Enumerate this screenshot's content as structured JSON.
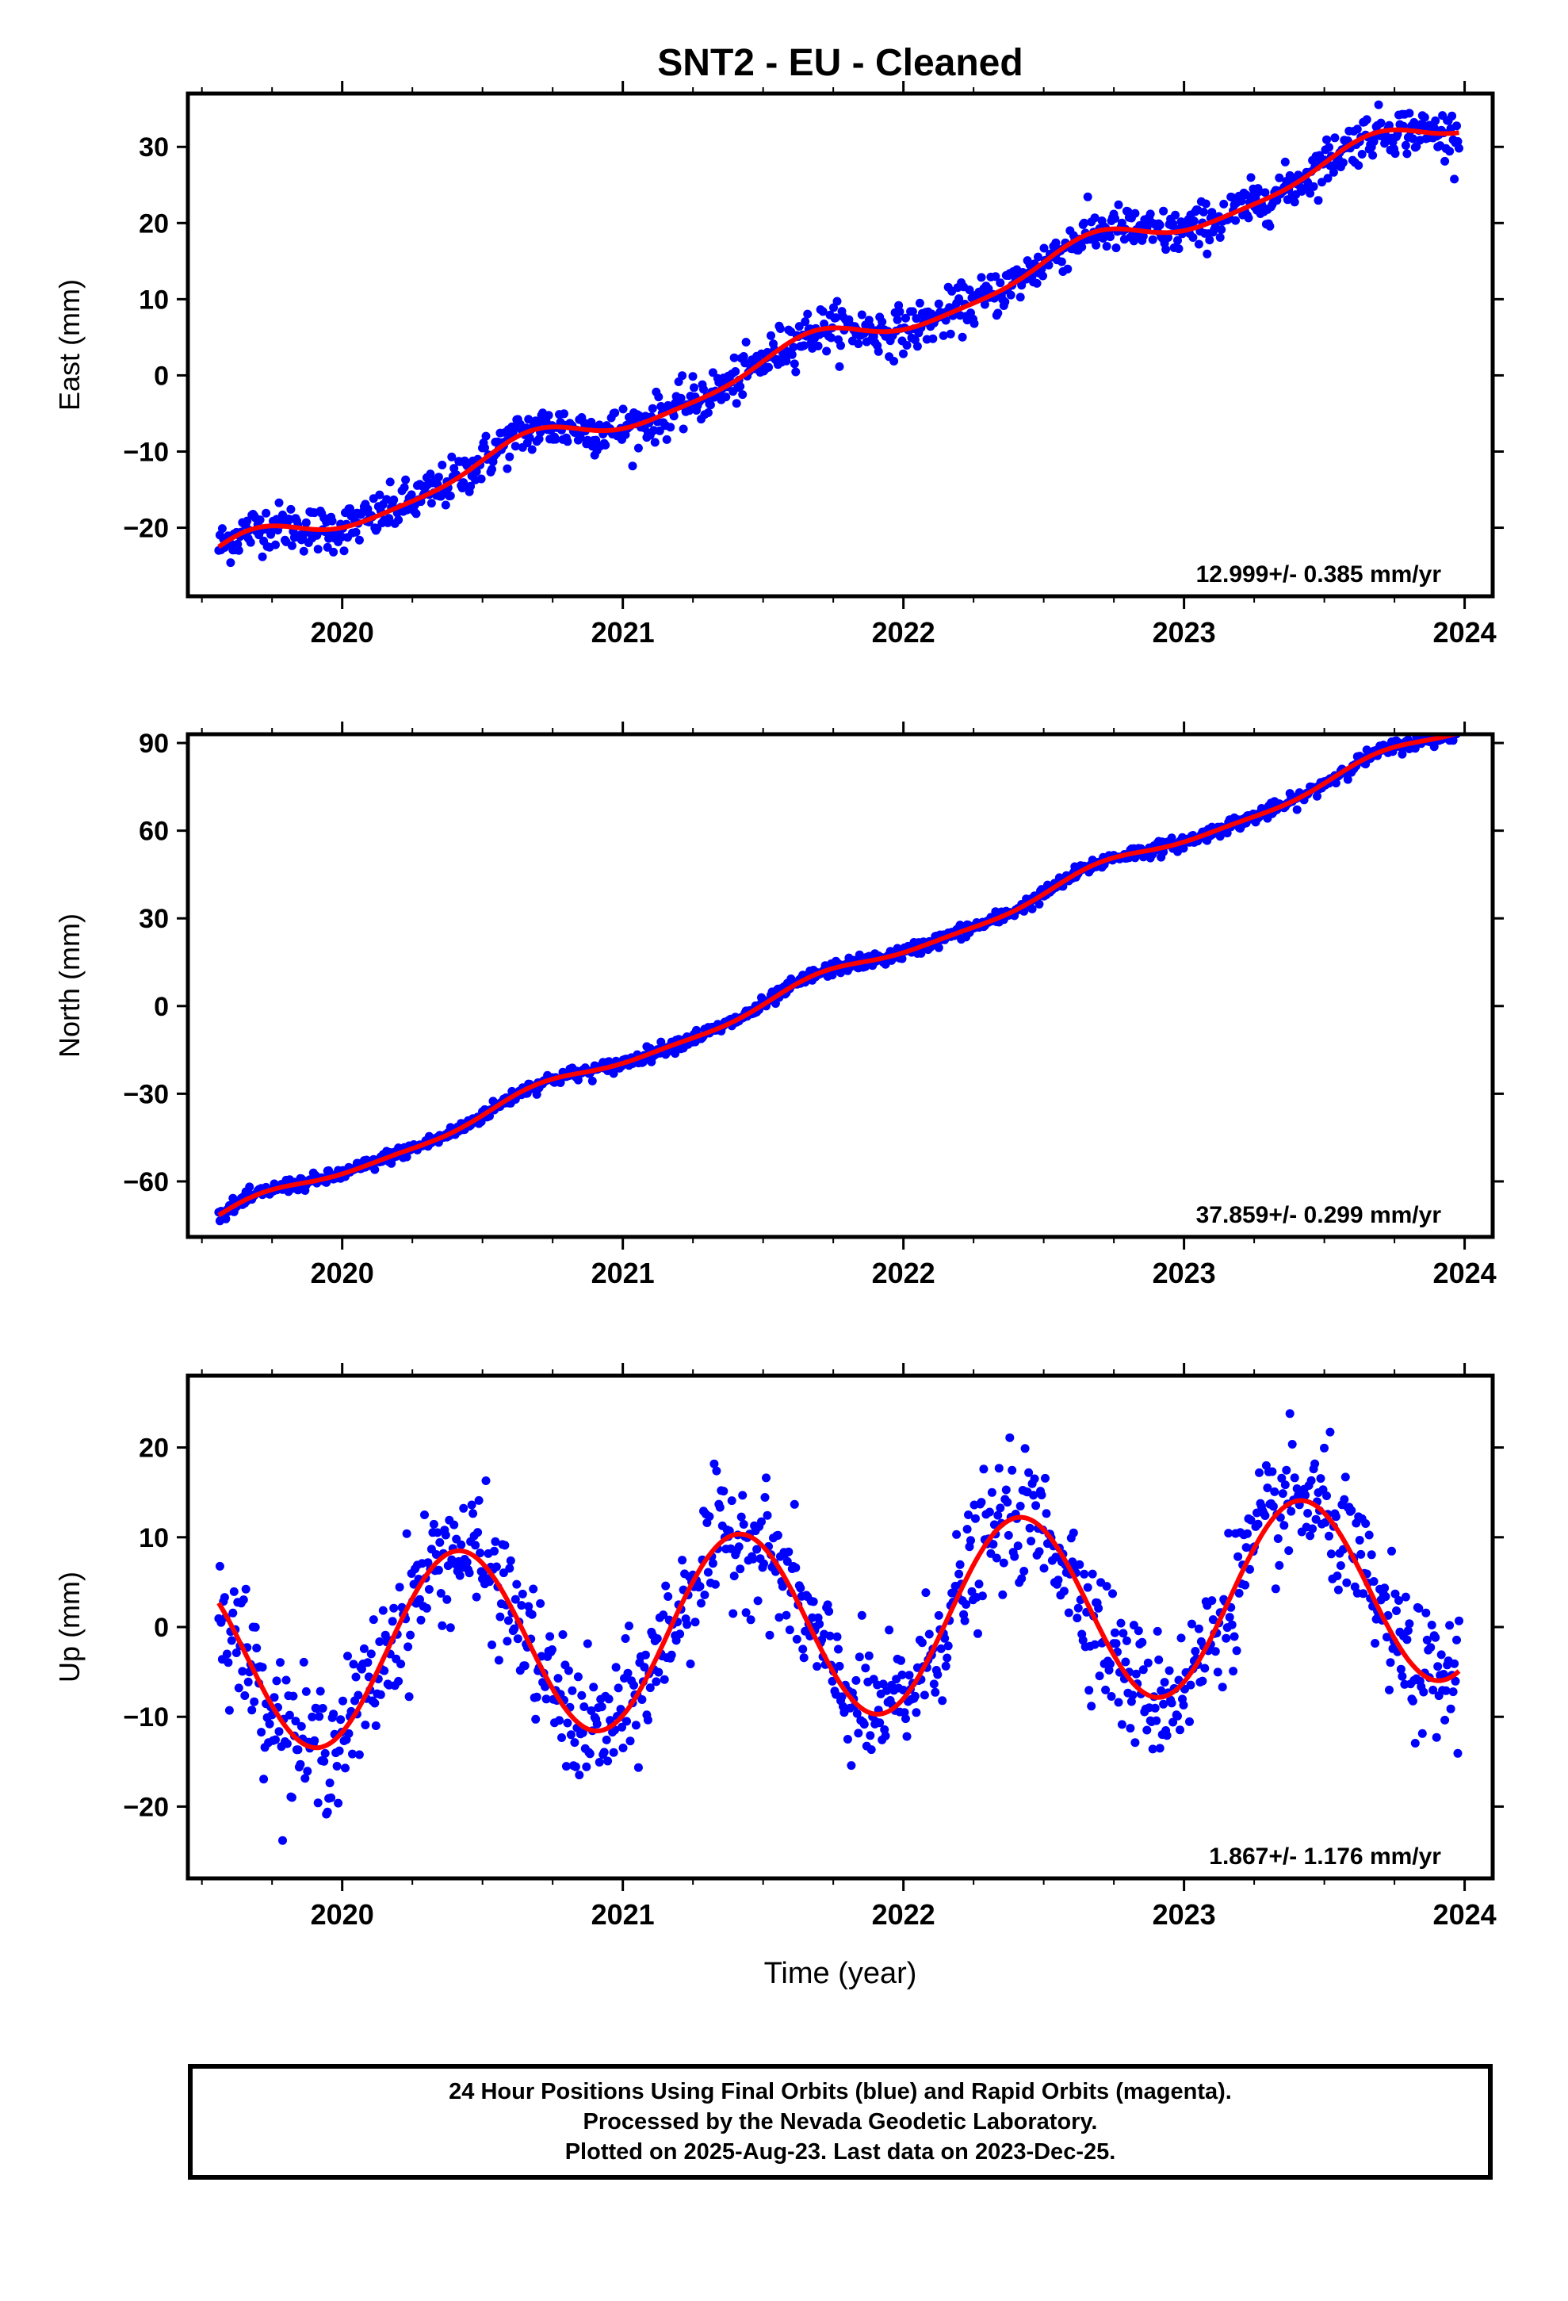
{
  "title": "SNT2  - EU - Cleaned",
  "caption": {
    "line1": "24 Hour Positions Using Final Orbits (blue) and Rapid Orbits (magenta).",
    "line2": "Processed by the Nevada Geodetic Laboratory.",
    "line3": "Plotted on 2025-Aug-23. Last data on 2023-Dec-25."
  },
  "colors": {
    "points": "#0000ff",
    "fit": "#ff0000",
    "frame": "#000000"
  },
  "chart_data": [
    {
      "type": "scatter",
      "ylabel": "East (mm)",
      "xlabel": "",
      "rate_label": "12.999+/- 0.385 mm/yr",
      "xlim": [
        2019.45,
        2024.1
      ],
      "ylim": [
        -29,
        37
      ],
      "xticks": [
        2020,
        2021,
        2022,
        2023,
        2024
      ],
      "yticks": [
        -20,
        -10,
        0,
        10,
        20,
        30
      ],
      "ytick_labels": [
        "−20",
        "−10",
        "0",
        "10",
        "20",
        "30"
      ],
      "series": [
        {
          "role": "daily positions",
          "model": "linear+seasonal+noise",
          "t0": 2019.56,
          "t1": 2023.98,
          "rate": 12.999,
          "offset": -24.2,
          "ann_amp": 2.0,
          "ann_phase": 1.0,
          "semi_amp": 0.5,
          "noise": 1.5,
          "count": 1050
        },
        {
          "role": "fit",
          "t0": 2019.56,
          "t1": 2023.98,
          "rate": 12.999,
          "offset": -24.2,
          "ann_amp": 2.0,
          "ann_phase": 1.0,
          "semi_amp": 0.5
        }
      ]
    },
    {
      "type": "scatter",
      "ylabel": "North (mm)",
      "xlabel": "",
      "rate_label": "37.859+/- 0.299 mm/yr",
      "xlim": [
        2019.45,
        2024.1
      ],
      "ylim": [
        -79,
        93
      ],
      "xticks": [
        2020,
        2021,
        2022,
        2023,
        2024
      ],
      "yticks": [
        -60,
        -30,
        0,
        30,
        60,
        90
      ],
      "ytick_labels": [
        "−60",
        "−30",
        "0",
        "30",
        "60",
        "90"
      ],
      "series": [
        {
          "role": "daily positions",
          "model": "linear+seasonal+noise",
          "t0": 2019.56,
          "t1": 2023.98,
          "rate": 37.859,
          "offset": -73.0,
          "ann_amp": 2.5,
          "ann_phase": 0.6,
          "semi_amp": 0.8,
          "noise": 1.2,
          "count": 1050
        },
        {
          "role": "fit",
          "t0": 2019.56,
          "t1": 2023.98,
          "rate": 37.859,
          "offset": -73.0,
          "ann_amp": 2.5,
          "ann_phase": 0.6,
          "semi_amp": 0.8
        }
      ]
    },
    {
      "type": "scatter",
      "ylabel": "Up (mm)",
      "xlabel": "Time (year)",
      "rate_label": "1.867+/- 1.176 mm/yr",
      "xlim": [
        2019.45,
        2024.1
      ],
      "ylim": [
        -28,
        28
      ],
      "xticks": [
        2020,
        2021,
        2022,
        2023,
        2024
      ],
      "yticks": [
        -20,
        -10,
        0,
        10,
        20
      ],
      "ytick_labels": [
        "−20",
        "−10",
        "0",
        "10",
        "20"
      ],
      "series": [
        {
          "role": "daily positions",
          "model": "linear+seasonal+noise",
          "t0": 2019.56,
          "t1": 2023.98,
          "rate": 1.867,
          "offset": -3.6,
          "ann_amp": 10.5,
          "ann_phase": 2.5,
          "semi_amp": 0.0,
          "noise": 3.5,
          "count": 1050
        },
        {
          "role": "fit",
          "t0": 2019.56,
          "t1": 2023.98,
          "rate": 1.867,
          "offset": -3.6,
          "ann_amp": 10.5,
          "ann_phase": 2.5,
          "semi_amp": 0.0
        }
      ]
    }
  ]
}
